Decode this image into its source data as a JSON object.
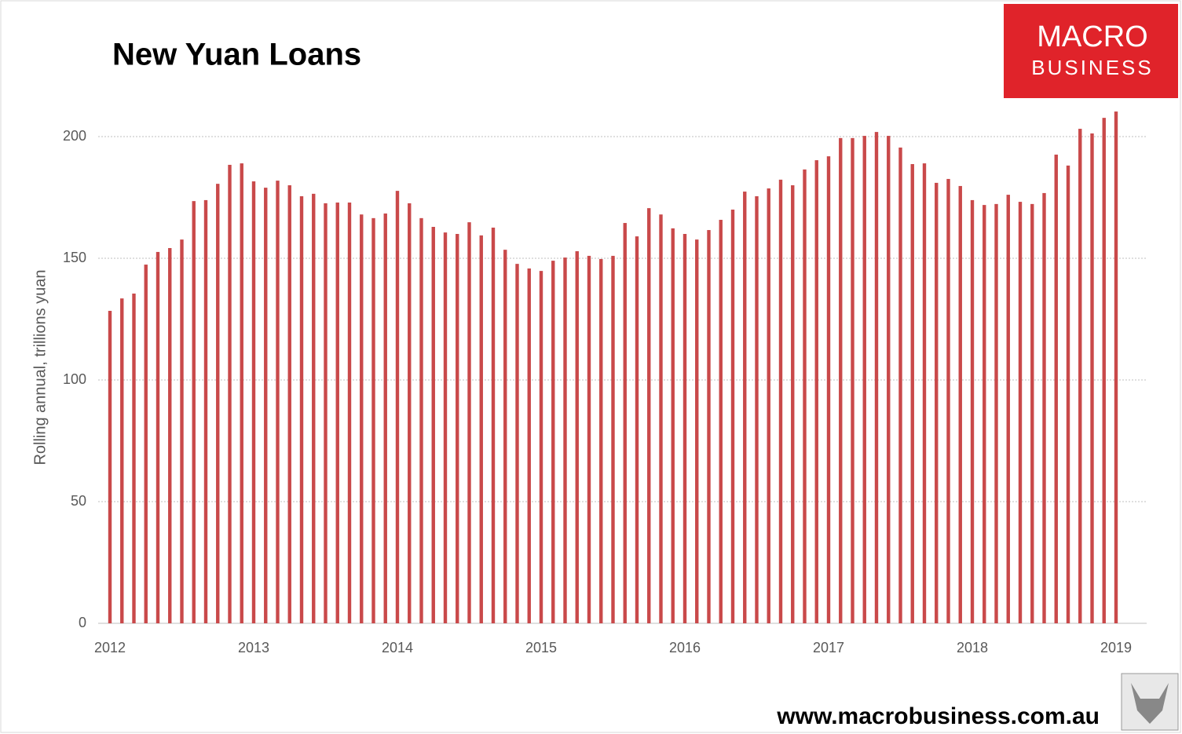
{
  "chart_data": {
    "type": "bar",
    "title": "New Yuan Loans",
    "logo": [
      "MACRO",
      "BUSINESS"
    ],
    "source": "www.macrobusiness.com.au",
    "y_label": "Rolling annual, trillions yuan",
    "categories": [
      "2012",
      null,
      null,
      null,
      null,
      null,
      null,
      null,
      null,
      null,
      null,
      null,
      "2013",
      null,
      null,
      null,
      null,
      null,
      null,
      null,
      null,
      null,
      null,
      null,
      "2014",
      null,
      null,
      null,
      null,
      null,
      null,
      null,
      null,
      null,
      null,
      null,
      "2015",
      null,
      null,
      null,
      null,
      null,
      null,
      null,
      null,
      null,
      null,
      null,
      "2016",
      null,
      null,
      null,
      null,
      null,
      null,
      null,
      null,
      null,
      null,
      null,
      "2017",
      null,
      null,
      null,
      null,
      null,
      null,
      null,
      null,
      null,
      null,
      null,
      "2018",
      null,
      null,
      null,
      null,
      null,
      null,
      null,
      null,
      null,
      null,
      null,
      "2019"
    ],
    "values": [
      128.4,
      133.5,
      135.5,
      147.4,
      152.6,
      154.2,
      157.7,
      173.5,
      173.9,
      180.6,
      188.4,
      189.0,
      181.6,
      179.0,
      181.9,
      180.0,
      175.5,
      176.5,
      172.6,
      172.9,
      172.9,
      168.0,
      166.5,
      168.4,
      177.7,
      172.6,
      166.5,
      162.9,
      160.6,
      160.0,
      164.8,
      159.4,
      162.6,
      153.5,
      147.7,
      145.8,
      144.8,
      149.0,
      150.3,
      152.9,
      151.0,
      149.7,
      151.0,
      164.5,
      159.0,
      170.6,
      168.0,
      162.3,
      160.0,
      157.7,
      161.6,
      165.8,
      170.0,
      177.4,
      175.5,
      178.7,
      182.3,
      180.0,
      186.5,
      190.3,
      191.9,
      199.4,
      199.4,
      200.3,
      201.9,
      200.3,
      195.5,
      188.7,
      189.0,
      181.0,
      182.6,
      179.7,
      173.9,
      171.9,
      172.3,
      176.1,
      173.2,
      172.3,
      176.8,
      192.6,
      188.1,
      203.2,
      201.3,
      207.7,
      210.3
    ],
    "color": "#c9494a",
    "ylim": [
      0,
      215
    ],
    "yticks": [
      0,
      50,
      100,
      150,
      200
    ],
    "grid": true
  }
}
